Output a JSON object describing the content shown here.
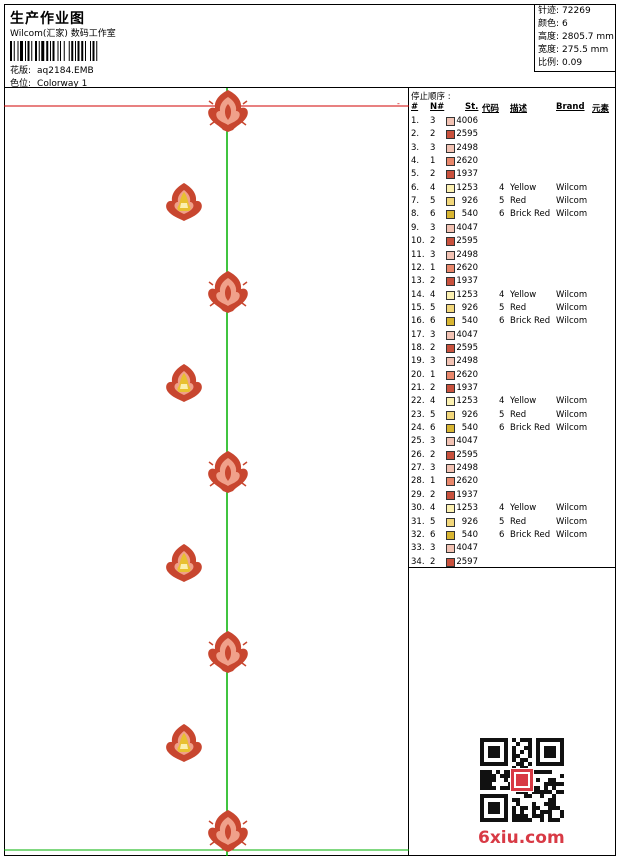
{
  "header": {
    "title": "生产作业图",
    "subtitle": "Wilcom(汇家) 数码工作室",
    "pattern_label": "花版:",
    "pattern_value": "aq2184.EMB",
    "color_label": "色位:",
    "color_value": "Colorway 1"
  },
  "stats": {
    "stitches_label": "针迹:",
    "stitches_value": "72269",
    "colors_label": "颜色:",
    "colors_value": "6",
    "height_label": "高度:",
    "height_value": "2805.7 mm",
    "width_label": "宽度:",
    "width_value": "275.5 mm",
    "scale_label": "比例:",
    "scale_value": "0.09"
  },
  "sequence": {
    "title": "停止顺序 :",
    "headers": {
      "num": "#",
      "needle": "N#",
      "st": "St.",
      "code": "代码",
      "desc": "描述",
      "brand": "Brand",
      "element": "元素"
    },
    "rows": [
      {
        "num": "1.",
        "needle": "3",
        "st": "4006",
        "code": "",
        "desc": "",
        "brand": "",
        "color": "#f2c2b3"
      },
      {
        "num": "2.",
        "needle": "2",
        "st": "2595",
        "code": "",
        "desc": "",
        "brand": "",
        "color": "#c9513d"
      },
      {
        "num": "3.",
        "needle": "3",
        "st": "2498",
        "code": "",
        "desc": "",
        "brand": "",
        "color": "#f2c2b3"
      },
      {
        "num": "4.",
        "needle": "1",
        "st": "2620",
        "code": "",
        "desc": "",
        "brand": "",
        "color": "#e9876b"
      },
      {
        "num": "5.",
        "needle": "2",
        "st": "1937",
        "code": "",
        "desc": "",
        "brand": "",
        "color": "#c9513d"
      },
      {
        "num": "6.",
        "needle": "4",
        "st": "1253",
        "code": "4",
        "desc": "Yellow",
        "brand": "Wilcom",
        "color": "#fbf0b0"
      },
      {
        "num": "7.",
        "needle": "5",
        "st": "926",
        "code": "5",
        "desc": "Red",
        "brand": "Wilcom",
        "color": "#f2d77a"
      },
      {
        "num": "8.",
        "needle": "6",
        "st": "540",
        "code": "6",
        "desc": "Brick Red",
        "brand": "Wilcom",
        "color": "#d8b531"
      },
      {
        "num": "9.",
        "needle": "3",
        "st": "4047",
        "code": "",
        "desc": "",
        "brand": "",
        "color": "#f2c2b3"
      },
      {
        "num": "10.",
        "needle": "2",
        "st": "2595",
        "code": "",
        "desc": "",
        "brand": "",
        "color": "#c9513d"
      },
      {
        "num": "11.",
        "needle": "3",
        "st": "2498",
        "code": "",
        "desc": "",
        "brand": "",
        "color": "#f2c2b3"
      },
      {
        "num": "12.",
        "needle": "1",
        "st": "2620",
        "code": "",
        "desc": "",
        "brand": "",
        "color": "#e9876b"
      },
      {
        "num": "13.",
        "needle": "2",
        "st": "1937",
        "code": "",
        "desc": "",
        "brand": "",
        "color": "#c9513d"
      },
      {
        "num": "14.",
        "needle": "4",
        "st": "1253",
        "code": "4",
        "desc": "Yellow",
        "brand": "Wilcom",
        "color": "#fbf0b0"
      },
      {
        "num": "15.",
        "needle": "5",
        "st": "926",
        "code": "5",
        "desc": "Red",
        "brand": "Wilcom",
        "color": "#f2d77a"
      },
      {
        "num": "16.",
        "needle": "6",
        "st": "540",
        "code": "6",
        "desc": "Brick Red",
        "brand": "Wilcom",
        "color": "#d8b531"
      },
      {
        "num": "17.",
        "needle": "3",
        "st": "4047",
        "code": "",
        "desc": "",
        "brand": "",
        "color": "#f2c2b3"
      },
      {
        "num": "18.",
        "needle": "2",
        "st": "2595",
        "code": "",
        "desc": "",
        "brand": "",
        "color": "#c9513d"
      },
      {
        "num": "19.",
        "needle": "3",
        "st": "2498",
        "code": "",
        "desc": "",
        "brand": "",
        "color": "#f2c2b3"
      },
      {
        "num": "20.",
        "needle": "1",
        "st": "2620",
        "code": "",
        "desc": "",
        "brand": "",
        "color": "#e9876b"
      },
      {
        "num": "21.",
        "needle": "2",
        "st": "1937",
        "code": "",
        "desc": "",
        "brand": "",
        "color": "#c9513d"
      },
      {
        "num": "22.",
        "needle": "4",
        "st": "1253",
        "code": "4",
        "desc": "Yellow",
        "brand": "Wilcom",
        "color": "#fbf0b0"
      },
      {
        "num": "23.",
        "needle": "5",
        "st": "926",
        "code": "5",
        "desc": "Red",
        "brand": "Wilcom",
        "color": "#f2d77a"
      },
      {
        "num": "24.",
        "needle": "6",
        "st": "540",
        "code": "6",
        "desc": "Brick Red",
        "brand": "Wilcom",
        "color": "#d8b531"
      },
      {
        "num": "25.",
        "needle": "3",
        "st": "4047",
        "code": "",
        "desc": "",
        "brand": "",
        "color": "#f2c2b3"
      },
      {
        "num": "26.",
        "needle": "2",
        "st": "2595",
        "code": "",
        "desc": "",
        "brand": "",
        "color": "#c9513d"
      },
      {
        "num": "27.",
        "needle": "3",
        "st": "2498",
        "code": "",
        "desc": "",
        "brand": "",
        "color": "#f2c2b3"
      },
      {
        "num": "28.",
        "needle": "1",
        "st": "2620",
        "code": "",
        "desc": "",
        "brand": "",
        "color": "#e9876b"
      },
      {
        "num": "29.",
        "needle": "2",
        "st": "1937",
        "code": "",
        "desc": "",
        "brand": "",
        "color": "#c9513d"
      },
      {
        "num": "30.",
        "needle": "4",
        "st": "1253",
        "code": "4",
        "desc": "Yellow",
        "brand": "Wilcom",
        "color": "#fbf0b0"
      },
      {
        "num": "31.",
        "needle": "5",
        "st": "926",
        "code": "5",
        "desc": "Red",
        "brand": "Wilcom",
        "color": "#f2d77a"
      },
      {
        "num": "32.",
        "needle": "6",
        "st": "540",
        "code": "6",
        "desc": "Brick Red",
        "brand": "Wilcom",
        "color": "#d8b531"
      },
      {
        "num": "33.",
        "needle": "3",
        "st": "4047",
        "code": "",
        "desc": "",
        "brand": "",
        "color": "#f2c2b3"
      },
      {
        "num": "34.",
        "needle": "2",
        "st": "2597",
        "code": "",
        "desc": "",
        "brand": "",
        "color": "#c9513d"
      }
    ]
  },
  "watermark": {
    "site": "6xiu.com"
  },
  "colors": {
    "guide_green": "#00b000",
    "guide_red": "#d00000",
    "motif_red": "#c8462f",
    "motif_pink": "#f0a08a",
    "motif_gold": "#e8c030",
    "logo_red": "#d83a45"
  }
}
